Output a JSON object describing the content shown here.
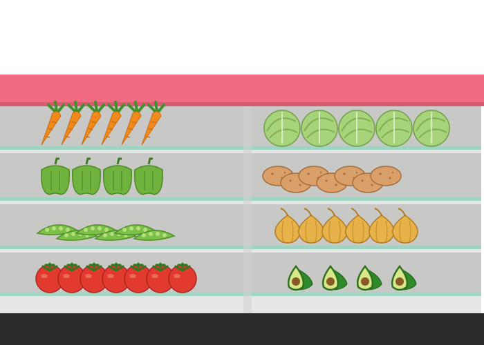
{
  "scene": {
    "colors": {
      "background": "#ffffff",
      "banner": "#f26b82",
      "banner_shadow": "#d85a70",
      "shelf_back": "#c8c8c6",
      "shelf_edge": "#9fd3c2",
      "shelf_lip": "#e6e6e6",
      "floor": "#2b2b2b",
      "divider": "#ffffff"
    },
    "shelves": [
      {
        "left": {
          "item": "carrot-icon",
          "count": 6
        },
        "right": {
          "item": "cabbage-icon",
          "count": 5
        }
      },
      {
        "left": {
          "item": "bell-pepper-icon",
          "count": 4
        },
        "right": {
          "item": "potato-icon",
          "count": 7
        }
      },
      {
        "left": {
          "item": "pea-pod-icon",
          "count": 6
        },
        "right": {
          "item": "onion-icon",
          "count": 6
        }
      },
      {
        "left": {
          "item": "tomato-icon",
          "count": 7
        },
        "right": {
          "item": "avocado-icon",
          "count": 4
        }
      }
    ]
  }
}
